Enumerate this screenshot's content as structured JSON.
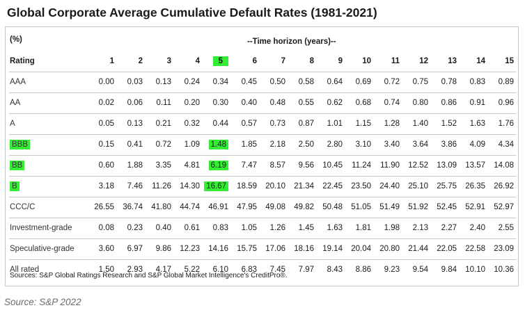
{
  "title": "Global Corporate Average Cumulative Default Rates (1981-2021)",
  "table": {
    "unit_label": "(%)",
    "horizon_label": "--Time horizon (years)--",
    "rating_header": "Rating",
    "horizons": [
      "1",
      "2",
      "3",
      "4",
      "5",
      "6",
      "7",
      "8",
      "9",
      "10",
      "11",
      "12",
      "13",
      "14",
      "15"
    ],
    "highlight_horizon": "5",
    "rows": [
      {
        "rating": "AAA",
        "highlight": false,
        "values": [
          "0.00",
          "0.03",
          "0.13",
          "0.24",
          "0.34",
          "0.45",
          "0.50",
          "0.58",
          "0.64",
          "0.69",
          "0.72",
          "0.75",
          "0.78",
          "0.83",
          "0.89"
        ]
      },
      {
        "rating": "AA",
        "highlight": false,
        "values": [
          "0.02",
          "0.06",
          "0.11",
          "0.20",
          "0.30",
          "0.40",
          "0.48",
          "0.55",
          "0.62",
          "0.68",
          "0.74",
          "0.80",
          "0.86",
          "0.91",
          "0.96"
        ]
      },
      {
        "rating": "A",
        "highlight": false,
        "values": [
          "0.05",
          "0.13",
          "0.21",
          "0.32",
          "0.44",
          "0.57",
          "0.73",
          "0.87",
          "1.01",
          "1.15",
          "1.28",
          "1.40",
          "1.52",
          "1.63",
          "1.76"
        ]
      },
      {
        "rating": "BBB",
        "highlight": true,
        "values": [
          "0.15",
          "0.41",
          "0.72",
          "1.09",
          "1.48",
          "1.85",
          "2.18",
          "2.50",
          "2.80",
          "3.10",
          "3.40",
          "3.64",
          "3.86",
          "4.09",
          "4.34"
        ]
      },
      {
        "rating": "BB",
        "highlight": true,
        "values": [
          "0.60",
          "1.88",
          "3.35",
          "4.81",
          "6.19",
          "7.47",
          "8.57",
          "9.56",
          "10.45",
          "11.24",
          "11.90",
          "12.52",
          "13.09",
          "13.57",
          "14.08"
        ]
      },
      {
        "rating": "B",
        "highlight": true,
        "values": [
          "3.18",
          "7.46",
          "11.26",
          "14.30",
          "16.67",
          "18.59",
          "20.10",
          "21.34",
          "22.45",
          "23.50",
          "24.40",
          "25.10",
          "25.75",
          "26.35",
          "26.92"
        ]
      },
      {
        "rating": "CCC/C",
        "highlight": false,
        "values": [
          "26.55",
          "36.74",
          "41.80",
          "44.74",
          "46.91",
          "47.95",
          "49.08",
          "49.82",
          "50.48",
          "51.05",
          "51.49",
          "51.92",
          "52.45",
          "52.91",
          "52.97"
        ]
      },
      {
        "rating": "Investment-grade",
        "highlight": false,
        "values": [
          "0.08",
          "0.23",
          "0.40",
          "0.61",
          "0.83",
          "1.05",
          "1.26",
          "1.45",
          "1.63",
          "1.81",
          "1.98",
          "2.13",
          "2.27",
          "2.40",
          "2.55"
        ]
      },
      {
        "rating": "Speculative-grade",
        "highlight": false,
        "values": [
          "3.60",
          "6.97",
          "9.86",
          "12.23",
          "14.16",
          "15.75",
          "17.06",
          "18.16",
          "19.14",
          "20.04",
          "20.80",
          "21.44",
          "22.05",
          "22.58",
          "23.09"
        ]
      },
      {
        "rating": "All rated",
        "highlight": false,
        "values": [
          "1.50",
          "2.93",
          "4.17",
          "5.22",
          "6.10",
          "6.83",
          "7.45",
          "7.97",
          "8.43",
          "8.86",
          "9.23",
          "9.54",
          "9.84",
          "10.10",
          "10.36"
        ]
      }
    ]
  },
  "sources_note": "Sources: S&P Global Ratings Research and S&P Global Market Intelligence's CreditPro®.",
  "source_caption": "Source: S&P 2022",
  "colors": {
    "highlight": "#33ee33",
    "rule": "#c8c8c8",
    "caption": "#6b6b6b"
  }
}
